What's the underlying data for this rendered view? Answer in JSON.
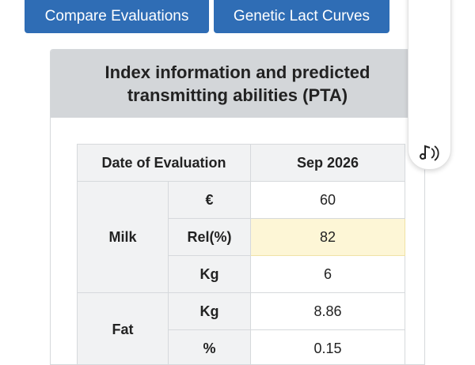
{
  "buttons": [
    "Compare Evaluations",
    "Genetic Lact Curves"
  ],
  "card": {
    "title": "Index information and predicted transmitting abilities (PTA)"
  },
  "table": {
    "header": [
      "Date of Evaluation",
      "Sep 2026"
    ],
    "groups": [
      {
        "label": "Milk",
        "rows": [
          {
            "unit": "€",
            "value": 60
          },
          {
            "unit": "Rel(%)",
            "value": 82
          },
          {
            "unit": "Kg",
            "value": 6
          }
        ]
      },
      {
        "label": "Fat",
        "rows": [
          {
            "unit": "Kg",
            "value": 8.86
          },
          {
            "unit": "%",
            "value": 0.15
          }
        ]
      }
    ]
  }
}
